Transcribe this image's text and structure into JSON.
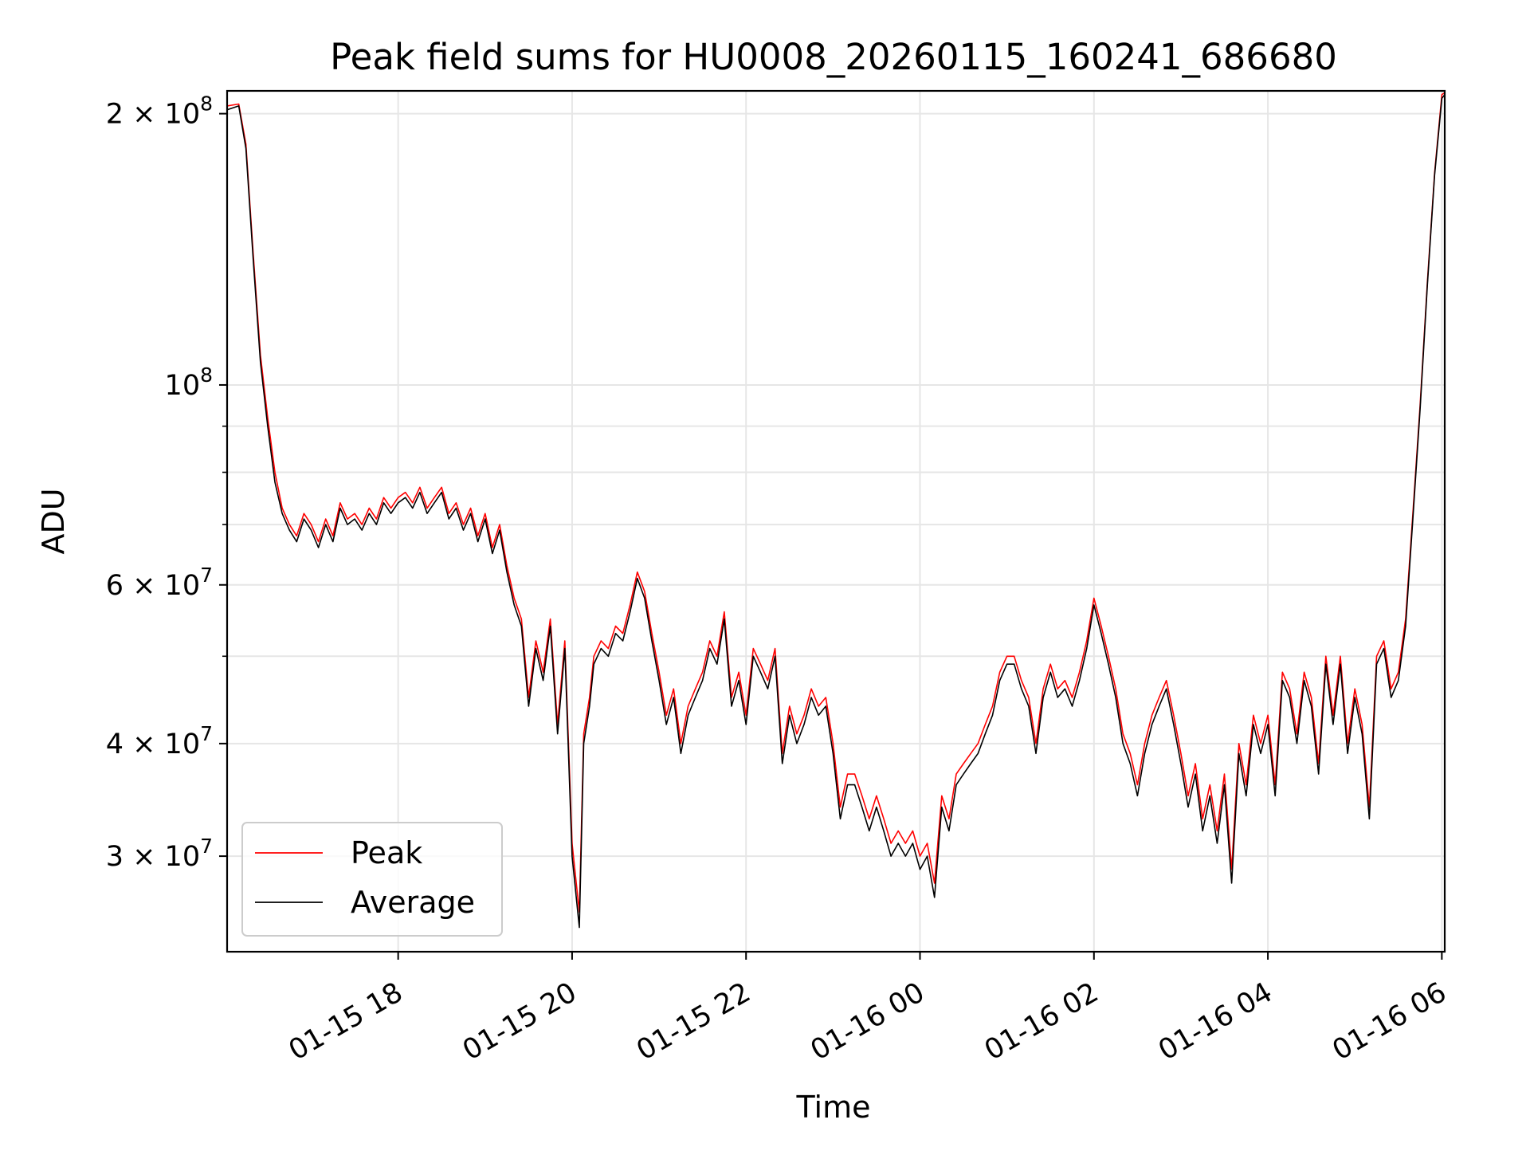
{
  "chart_data": {
    "type": "line",
    "title": "Peak field sums for HU0008_20260115_160241_686680",
    "xlabel": "Time",
    "ylabel": "ADU",
    "y_scale": "log",
    "ylim": [
      23500000,
      212000000
    ],
    "xlim": [
      "2026-01-15 16:02",
      "2026-01-16 06:02"
    ],
    "grid": true,
    "legend_position": "lower-left",
    "colors": {
      "Peak": "#ff0000",
      "Average": "#000000"
    },
    "x_ticks": [
      {
        "value": "2026-01-15 18:00",
        "label": "01-15 18"
      },
      {
        "value": "2026-01-15 20:00",
        "label": "01-15 20"
      },
      {
        "value": "2026-01-15 22:00",
        "label": "01-15 22"
      },
      {
        "value": "2026-01-16 00:00",
        "label": "01-16 00"
      },
      {
        "value": "2026-01-16 02:00",
        "label": "01-16 02"
      },
      {
        "value": "2026-01-16 04:00",
        "label": "01-16 04"
      },
      {
        "value": "2026-01-16 06:00",
        "label": "01-16 06"
      }
    ],
    "y_ticks": [
      {
        "value": 30000000,
        "base": "3 × 10",
        "exp": "7"
      },
      {
        "value": 40000000,
        "base": "4 × 10",
        "exp": "7"
      },
      {
        "value": 60000000,
        "base": "6 × 10",
        "exp": "7"
      },
      {
        "value": 100000000,
        "base": "10",
        "exp": "8"
      },
      {
        "value": 200000000,
        "base": "2 × 10",
        "exp": "8"
      }
    ],
    "y_minor_ticks": [
      50000000,
      70000000,
      80000000,
      90000000
    ],
    "x": [
      "2026-01-15 16:02",
      "2026-01-15 16:10",
      "2026-01-15 16:15",
      "2026-01-15 16:20",
      "2026-01-15 16:25",
      "2026-01-15 16:30",
      "2026-01-15 16:35",
      "2026-01-15 16:40",
      "2026-01-15 16:45",
      "2026-01-15 16:50",
      "2026-01-15 16:55",
      "2026-01-15 17:00",
      "2026-01-15 17:05",
      "2026-01-15 17:10",
      "2026-01-15 17:15",
      "2026-01-15 17:20",
      "2026-01-15 17:25",
      "2026-01-15 17:30",
      "2026-01-15 17:35",
      "2026-01-15 17:40",
      "2026-01-15 17:45",
      "2026-01-15 17:50",
      "2026-01-15 17:55",
      "2026-01-15 18:00",
      "2026-01-15 18:05",
      "2026-01-15 18:10",
      "2026-01-15 18:15",
      "2026-01-15 18:20",
      "2026-01-15 18:25",
      "2026-01-15 18:30",
      "2026-01-15 18:35",
      "2026-01-15 18:40",
      "2026-01-15 18:45",
      "2026-01-15 18:50",
      "2026-01-15 18:55",
      "2026-01-15 19:00",
      "2026-01-15 19:05",
      "2026-01-15 19:10",
      "2026-01-15 19:15",
      "2026-01-15 19:20",
      "2026-01-15 19:25",
      "2026-01-15 19:30",
      "2026-01-15 19:35",
      "2026-01-15 19:40",
      "2026-01-15 19:45",
      "2026-01-15 19:50",
      "2026-01-15 19:55",
      "2026-01-15 20:00",
      "2026-01-15 20:05",
      "2026-01-15 20:08",
      "2026-01-15 20:12",
      "2026-01-15 20:15",
      "2026-01-15 20:20",
      "2026-01-15 20:25",
      "2026-01-15 20:30",
      "2026-01-15 20:35",
      "2026-01-15 20:40",
      "2026-01-15 20:45",
      "2026-01-15 20:50",
      "2026-01-15 20:55",
      "2026-01-15 21:00",
      "2026-01-15 21:05",
      "2026-01-15 21:10",
      "2026-01-15 21:15",
      "2026-01-15 21:20",
      "2026-01-15 21:25",
      "2026-01-15 21:30",
      "2026-01-15 21:35",
      "2026-01-15 21:40",
      "2026-01-15 21:45",
      "2026-01-15 21:50",
      "2026-01-15 21:55",
      "2026-01-15 22:00",
      "2026-01-15 22:05",
      "2026-01-15 22:10",
      "2026-01-15 22:15",
      "2026-01-15 22:20",
      "2026-01-15 22:25",
      "2026-01-15 22:30",
      "2026-01-15 22:35",
      "2026-01-15 22:40",
      "2026-01-15 22:45",
      "2026-01-15 22:50",
      "2026-01-15 22:55",
      "2026-01-15 23:00",
      "2026-01-15 23:05",
      "2026-01-15 23:10",
      "2026-01-15 23:15",
      "2026-01-15 23:20",
      "2026-01-15 23:25",
      "2026-01-15 23:30",
      "2026-01-15 23:35",
      "2026-01-15 23:40",
      "2026-01-15 23:45",
      "2026-01-15 23:50",
      "2026-01-15 23:55",
      "2026-01-16 00:00",
      "2026-01-16 00:05",
      "2026-01-16 00:10",
      "2026-01-16 00:15",
      "2026-01-16 00:20",
      "2026-01-16 00:25",
      "2026-01-16 00:30",
      "2026-01-16 00:35",
      "2026-01-16 00:40",
      "2026-01-16 00:45",
      "2026-01-16 00:50",
      "2026-01-16 00:55",
      "2026-01-16 01:00",
      "2026-01-16 01:05",
      "2026-01-16 01:10",
      "2026-01-16 01:15",
      "2026-01-16 01:20",
      "2026-01-16 01:25",
      "2026-01-16 01:30",
      "2026-01-16 01:35",
      "2026-01-16 01:40",
      "2026-01-16 01:45",
      "2026-01-16 01:50",
      "2026-01-16 01:55",
      "2026-01-16 02:00",
      "2026-01-16 02:05",
      "2026-01-16 02:10",
      "2026-01-16 02:15",
      "2026-01-16 02:20",
      "2026-01-16 02:25",
      "2026-01-16 02:30",
      "2026-01-16 02:35",
      "2026-01-16 02:40",
      "2026-01-16 02:45",
      "2026-01-16 02:50",
      "2026-01-16 02:55",
      "2026-01-16 03:00",
      "2026-01-16 03:05",
      "2026-01-16 03:10",
      "2026-01-16 03:15",
      "2026-01-16 03:20",
      "2026-01-16 03:25",
      "2026-01-16 03:30",
      "2026-01-16 03:35",
      "2026-01-16 03:40",
      "2026-01-16 03:45",
      "2026-01-16 03:50",
      "2026-01-16 03:55",
      "2026-01-16 04:00",
      "2026-01-16 04:05",
      "2026-01-16 04:10",
      "2026-01-16 04:15",
      "2026-01-16 04:20",
      "2026-01-16 04:25",
      "2026-01-16 04:30",
      "2026-01-16 04:35",
      "2026-01-16 04:40",
      "2026-01-16 04:45",
      "2026-01-16 04:50",
      "2026-01-16 04:55",
      "2026-01-16 05:00",
      "2026-01-16 05:05",
      "2026-01-16 05:10",
      "2026-01-16 05:15",
      "2026-01-16 05:20",
      "2026-01-16 05:25",
      "2026-01-16 05:30",
      "2026-01-16 05:35",
      "2026-01-16 05:40",
      "2026-01-16 05:45",
      "2026-01-16 05:50",
      "2026-01-16 05:55",
      "2026-01-16 06:00",
      "2026-01-16 06:02"
    ],
    "series": [
      {
        "name": "Peak",
        "values": [
          204,
          205,
          185,
          140,
          108,
          92,
          80,
          73,
          70,
          68,
          72,
          70,
          67,
          71,
          68,
          74,
          71,
          72,
          70,
          73,
          71,
          75,
          73,
          75,
          76,
          74,
          77,
          73,
          75,
          77,
          72,
          74,
          70,
          73,
          68,
          72,
          66,
          70,
          63,
          58,
          55,
          45,
          52,
          48,
          55,
          42,
          52,
          31,
          26,
          41,
          45,
          50,
          52,
          51,
          54,
          53,
          57,
          62,
          59,
          53,
          48,
          43,
          46,
          40,
          44,
          46,
          48,
          52,
          50,
          56,
          45,
          48,
          43,
          51,
          49,
          47,
          51,
          39,
          44,
          41,
          43,
          46,
          44,
          45,
          40,
          34,
          37,
          37,
          35,
          33,
          35,
          33,
          31,
          32,
          31,
          32,
          30,
          31,
          28,
          35,
          33,
          37,
          38,
          39,
          40,
          42,
          44,
          48,
          50,
          50,
          47,
          45,
          40,
          46,
          49,
          46,
          47,
          45,
          48,
          52,
          58,
          54,
          50,
          46,
          41,
          39,
          36,
          40,
          43,
          45,
          47,
          43,
          39,
          35,
          38,
          33,
          36,
          32,
          37,
          29,
          40,
          36,
          43,
          40,
          43,
          36,
          48,
          46,
          41,
          48,
          45,
          38,
          50,
          43,
          50,
          40,
          46,
          42,
          34,
          50,
          52,
          46,
          48,
          55,
          72,
          95,
          130,
          172,
          210,
          211
        ]
      },
      {
        "name": "Average",
        "values": [
          202,
          204,
          183,
          138,
          106,
          90,
          78,
          72,
          69,
          67,
          71,
          69,
          66,
          70,
          67,
          73,
          70,
          71,
          69,
          72,
          70,
          74,
          72,
          74,
          75,
          73,
          76,
          72,
          74,
          76,
          71,
          73,
          69,
          72,
          67,
          71,
          65,
          69,
          62,
          57,
          54,
          44,
          51,
          47,
          54,
          41,
          51,
          30,
          25,
          40,
          44,
          49,
          51,
          50,
          53,
          52,
          56,
          61,
          58,
          52,
          47,
          42,
          45,
          39,
          43,
          45,
          47,
          51,
          49,
          55,
          44,
          47,
          42,
          50,
          48,
          46,
          50,
          38,
          43,
          40,
          42,
          45,
          43,
          44,
          39,
          33,
          36,
          36,
          34,
          32,
          34,
          32,
          30,
          31,
          30,
          31,
          29,
          30,
          27,
          34,
          32,
          36,
          37,
          38,
          39,
          41,
          43,
          47,
          49,
          49,
          46,
          44,
          39,
          45,
          48,
          45,
          46,
          44,
          47,
          51,
          57,
          53,
          49,
          45,
          40,
          38,
          35,
          39,
          42,
          44,
          46,
          42,
          38,
          34,
          37,
          32,
          35,
          31,
          36,
          28,
          39,
          35,
          42,
          39,
          42,
          35,
          47,
          45,
          40,
          47,
          44,
          37,
          49,
          42,
          49,
          39,
          45,
          41,
          33,
          49,
          51,
          45,
          47,
          54,
          71,
          94,
          129,
          171,
          208,
          210
        ]
      }
    ],
    "y_unit_multiplier": 1000000
  }
}
